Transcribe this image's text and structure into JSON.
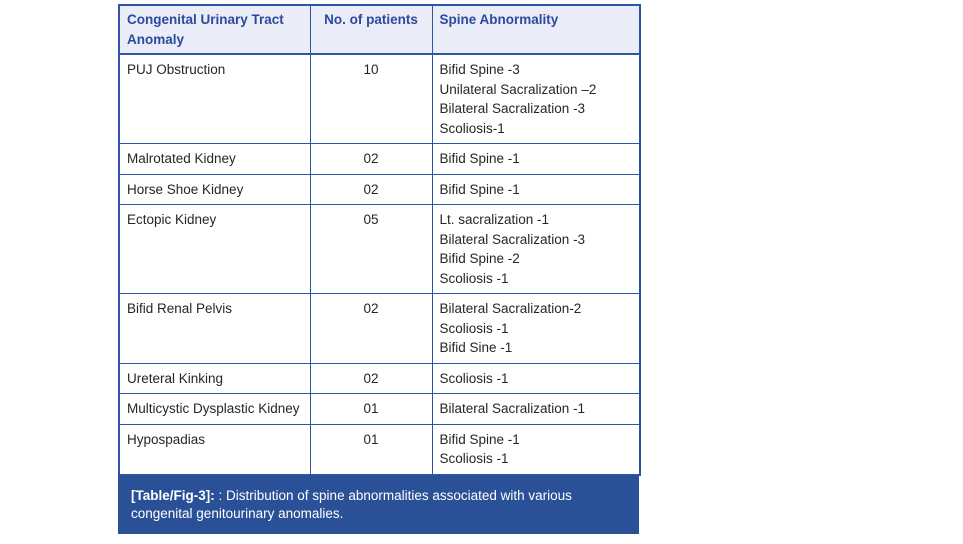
{
  "colors": {
    "border_blue": "#2e55a3",
    "header_background": "#eaecf7",
    "header_text": "#2b4a9e",
    "body_text": "#262626",
    "caption_background": "#2a5198",
    "caption_text": "#ffffff",
    "page_background": "#ffffff"
  },
  "table": {
    "headers": [
      "Congenital Urinary Tract Anomaly",
      "No. of patients",
      "Spine Abnormality"
    ],
    "rows": [
      {
        "anomaly": "PUJ Obstruction",
        "patients": "10",
        "abnormalities": [
          "Bifid Spine -3",
          "Unilateral Sacralization –2",
          "Bilateral Sacralization -3",
          "Scoliosis-1"
        ]
      },
      {
        "anomaly": "Malrotated Kidney",
        "patients": "02",
        "abnormalities": [
          "Bifid Spine -1"
        ]
      },
      {
        "anomaly": "Horse Shoe Kidney",
        "patients": "02",
        "abnormalities": [
          "Bifid Spine -1"
        ]
      },
      {
        "anomaly": "Ectopic Kidney",
        "patients": "05",
        "abnormalities": [
          "Lt. sacralization -1",
          "Bilateral Sacralization -3",
          "Bifid Spine -2",
          "Scoliosis -1"
        ]
      },
      {
        "anomaly": "Bifid Renal Pelvis",
        "patients": "02",
        "abnormalities": [
          "Bilateral Sacralization-2",
          "Scoliosis -1",
          "Bifid Sine -1"
        ]
      },
      {
        "anomaly": "Ureteral Kinking",
        "patients": "02",
        "abnormalities": [
          "Scoliosis -1"
        ]
      },
      {
        "anomaly": "Multicystic Dysplastic Kidney",
        "patients": "01",
        "abnormalities": [
          "Bilateral Sacralization -1"
        ]
      },
      {
        "anomaly": "Hypospadias",
        "patients": "01",
        "abnormalities": [
          "Bifid Spine -1",
          "Scoliosis -1"
        ]
      }
    ],
    "caption": {
      "label": "[Table/Fig-3]:",
      "text": ": Distribution of spine abnormalities associated with various congenital genitourinary anomalies."
    }
  }
}
